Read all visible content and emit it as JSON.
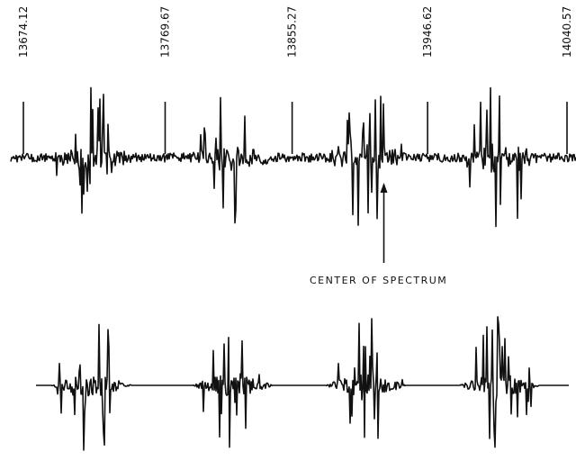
{
  "chart_data": {
    "type": "line",
    "frequency_markers": [
      "13674.12",
      "13769.67",
      "13855.27",
      "13946.62",
      "14040.57"
    ],
    "annotation": "CENTER OF SPECTRUM",
    "series": [
      {
        "role": "experimental",
        "noise": true
      },
      {
        "role": "simulated",
        "noise": false
      }
    ],
    "line_groups": [
      {
        "center": 13720,
        "width": 55
      },
      {
        "center": 13815,
        "width": 55
      },
      {
        "center": 13905,
        "width": 55
      },
      {
        "center": 13995,
        "width": 55
      }
    ],
    "center_frequency": 13905,
    "grid": false
  }
}
